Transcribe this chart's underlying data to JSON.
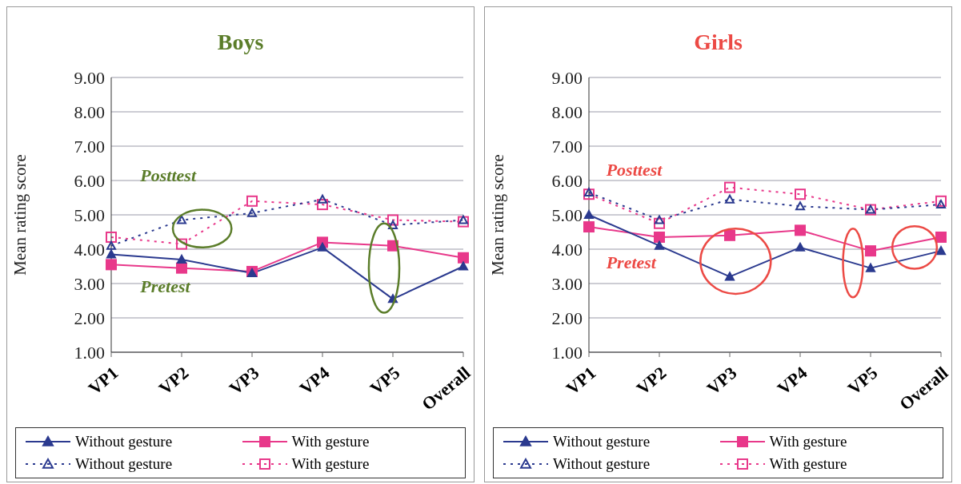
{
  "chart_data": [
    {
      "type": "line",
      "title": "Boys",
      "ylabel": "Mean rating score",
      "categories": [
        "VP1",
        "VP2",
        "VP3",
        "VP4",
        "VP5",
        "Overall"
      ],
      "ylim": [
        1,
        9
      ],
      "yticks": [
        {
          "value": 1,
          "label": "1.00"
        },
        {
          "value": 2,
          "label": "2.00"
        },
        {
          "value": 3,
          "label": "3.00"
        },
        {
          "value": 4,
          "label": "4.00"
        },
        {
          "value": 5,
          "label": "5.00"
        },
        {
          "value": 6,
          "label": "6.00"
        },
        {
          "value": 7,
          "label": "7.00"
        },
        {
          "value": 8,
          "label": "8.00"
        },
        {
          "value": 9,
          "label": "9.00"
        }
      ],
      "grid": "y",
      "legend": "bottom",
      "series": [
        {
          "name": "Without gesture",
          "color": "#2b3a8f",
          "marker": "triangle",
          "line_style": "solid",
          "values": [
            3.85,
            3.7,
            3.3,
            4.05,
            2.55,
            3.5
          ]
        },
        {
          "name": "With gesture",
          "color": "#e8388a",
          "marker": "square",
          "line_style": "solid",
          "values": [
            3.55,
            3.45,
            3.35,
            4.2,
            4.1,
            3.75
          ]
        },
        {
          "name": "Without gesture",
          "color": "#2b3a8f",
          "marker": "triangle",
          "line_style": "dotted",
          "values": [
            4.1,
            4.85,
            5.05,
            5.45,
            4.7,
            4.85
          ]
        },
        {
          "name": "With gesture",
          "color": "#e8388a",
          "marker": "square",
          "line_style": "dotted",
          "values": [
            4.35,
            4.15,
            5.4,
            5.3,
            4.85,
            4.8
          ]
        }
      ],
      "annotations": [
        "Posttest",
        "Pretest"
      ]
    },
    {
      "type": "line",
      "title": "Girls",
      "ylabel": "Mean rating score",
      "categories": [
        "VP1",
        "VP2",
        "VP3",
        "VP4",
        "VP5",
        "Overall"
      ],
      "ylim": [
        1,
        9
      ],
      "yticks": [
        {
          "value": 1,
          "label": "1.00"
        },
        {
          "value": 2,
          "label": "2.00"
        },
        {
          "value": 3,
          "label": "3.00"
        },
        {
          "value": 4,
          "label": "4.00"
        },
        {
          "value": 5,
          "label": "5.00"
        },
        {
          "value": 6,
          "label": "6.00"
        },
        {
          "value": 7,
          "label": "7.00"
        },
        {
          "value": 8,
          "label": "8.00"
        },
        {
          "value": 9,
          "label": "9.00"
        }
      ],
      "grid": "y",
      "legend": "bottom",
      "series": [
        {
          "name": "Without gesture",
          "color": "#2b3a8f",
          "marker": "triangle",
          "line_style": "solid",
          "values": [
            5.0,
            4.1,
            3.2,
            4.05,
            3.45,
            3.95
          ]
        },
        {
          "name": "With gesture",
          "color": "#e8388a",
          "marker": "square",
          "line_style": "solid",
          "values": [
            4.65,
            4.35,
            4.4,
            4.55,
            3.95,
            4.35
          ]
        },
        {
          "name": "Without gesture",
          "color": "#2b3a8f",
          "marker": "triangle",
          "line_style": "dotted",
          "values": [
            5.65,
            4.85,
            5.45,
            5.25,
            5.15,
            5.3
          ]
        },
        {
          "name": "With gesture",
          "color": "#e8388a",
          "marker": "square",
          "line_style": "dotted",
          "values": [
            5.6,
            4.75,
            5.8,
            5.6,
            5.15,
            5.4
          ]
        }
      ],
      "annotations": [
        "Posttest",
        "Pretest"
      ]
    }
  ]
}
